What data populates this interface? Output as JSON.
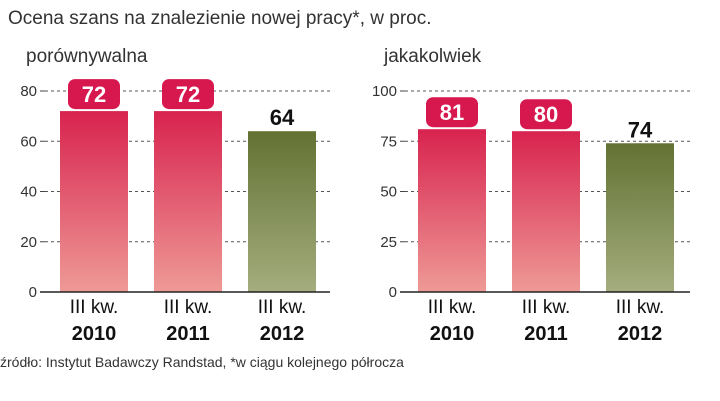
{
  "title": "Ocena szans na znalezienie nowej pracy*, w proc.",
  "source": "źródło: Instytut Badawczy Randstad, *w ciągu kolejnego półrocza",
  "colors": {
    "highlight_label_bg": "#d6184f",
    "bar_red_top": "#d8234f",
    "bar_red_bottom": "#ee9a96",
    "bar_green_top": "#637233",
    "bar_green_bottom": "#a4ad7e"
  },
  "chart_data": [
    {
      "type": "bar",
      "subtitle": "porównywalna",
      "categories": [
        {
          "line1": "III kw.",
          "line2": "2010"
        },
        {
          "line1": "III kw.",
          "line2": "2011"
        },
        {
          "line1": "III kw.",
          "line2": "2012"
        }
      ],
      "values": [
        72,
        72,
        64
      ],
      "highlighted": [
        true,
        true,
        false
      ],
      "ylim": [
        0,
        80
      ],
      "yticks": [
        0,
        20,
        40,
        60,
        80
      ],
      "grid": true
    },
    {
      "type": "bar",
      "subtitle": "jakakolwiek",
      "categories": [
        {
          "line1": "III kw.",
          "line2": "2010"
        },
        {
          "line1": "III kw.",
          "line2": "2011"
        },
        {
          "line1": "III kw.",
          "line2": "2012"
        }
      ],
      "values": [
        81,
        80,
        74
      ],
      "highlighted": [
        true,
        true,
        false
      ],
      "ylim": [
        0,
        100
      ],
      "yticks": [
        0,
        25,
        50,
        75,
        100
      ],
      "grid": true
    }
  ]
}
